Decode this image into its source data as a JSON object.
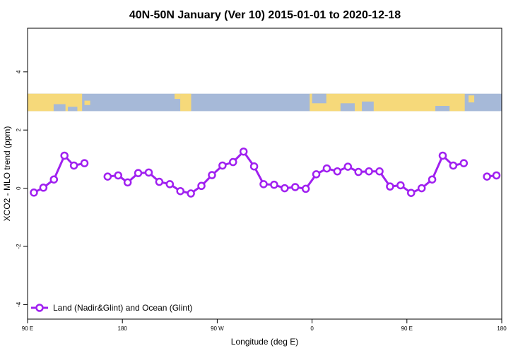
{
  "chart_data": {
    "type": "line",
    "title": "40N-50N January (Ver 10)   2015-01-01 to 2020-12-18",
    "xlabel": "Longitude (deg E)",
    "ylabel": "XCO2 - MLO trend (ppm)",
    "xlim": [
      90,
      540
    ],
    "ylim": [
      -4.5,
      5.5
    ],
    "x_ticks": [
      {
        "value": 90,
        "label": "90 E"
      },
      {
        "value": 180,
        "label": "180"
      },
      {
        "value": 270,
        "label": "90 W"
      },
      {
        "value": 360,
        "label": "0"
      },
      {
        "value": 450,
        "label": "90 E"
      },
      {
        "value": 540,
        "label": "180"
      }
    ],
    "y_ticks": [
      {
        "value": -4,
        "label": "-4"
      },
      {
        "value": -2,
        "label": "-2"
      },
      {
        "value": 0,
        "label": "0"
      },
      {
        "value": 2,
        "label": "2"
      },
      {
        "value": 4,
        "label": "4"
      }
    ],
    "land_ocean_strip": {
      "y_range": [
        2.65,
        3.25
      ],
      "land_color": "#f6d97a",
      "ocean_color": "#a6b9d8"
    },
    "legend": {
      "position": "bottom-left",
      "entries": [
        "Land (Nadir&Glint) and Ocean (Glint)"
      ]
    },
    "series": [
      {
        "name": "Land (Nadir&Glint) and Ocean (Glint)",
        "color": "#a020f0",
        "segments": [
          [
            [
              96,
              -0.15
            ],
            [
              105,
              0.02
            ],
            [
              115,
              0.3
            ],
            [
              125,
              1.12
            ],
            [
              134,
              0.78
            ],
            [
              144,
              0.86
            ]
          ],
          [
            [
              166,
              0.4
            ],
            [
              176,
              0.44
            ],
            [
              185,
              0.2
            ],
            [
              195,
              0.52
            ],
            [
              205,
              0.54
            ],
            [
              215,
              0.22
            ],
            [
              225,
              0.14
            ],
            [
              235,
              -0.1
            ],
            [
              245,
              -0.18
            ],
            [
              255,
              0.08
            ],
            [
              265,
              0.45
            ],
            [
              275,
              0.78
            ],
            [
              285,
              0.9
            ],
            [
              295,
              1.26
            ],
            [
              305,
              0.75
            ],
            [
              314,
              0.14
            ],
            [
              324,
              0.12
            ],
            [
              334,
              0.0
            ],
            [
              344,
              0.04
            ],
            [
              354,
              -0.02
            ],
            [
              364,
              0.48
            ],
            [
              374,
              0.68
            ],
            [
              384,
              0.58
            ],
            [
              394,
              0.74
            ],
            [
              404,
              0.56
            ],
            [
              414,
              0.58
            ],
            [
              424,
              0.58
            ],
            [
              434,
              0.06
            ],
            [
              444,
              0.1
            ],
            [
              454,
              -0.16
            ],
            [
              464,
              0.0
            ],
            [
              474,
              0.3
            ],
            [
              484,
              1.12
            ],
            [
              494,
              0.78
            ],
            [
              504,
              0.86
            ]
          ],
          [
            [
              526,
              0.4
            ],
            [
              535,
              0.44
            ]
          ]
        ]
      }
    ]
  }
}
